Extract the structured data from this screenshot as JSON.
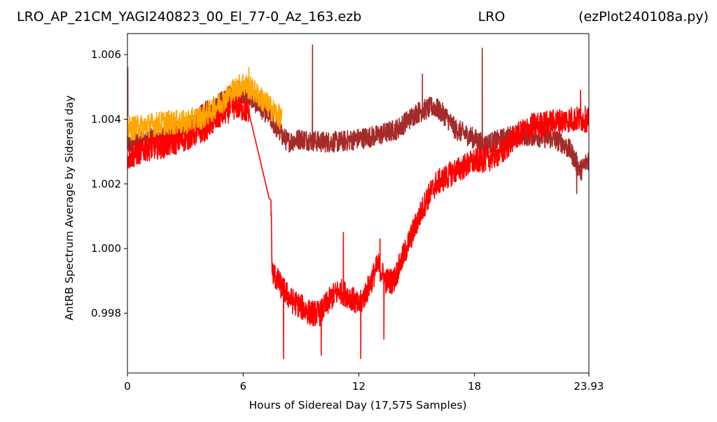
{
  "header": {
    "title_left": "LRO_AP_21CM_YAGI240823_00_El_77-0_Az_163.ezb",
    "title_center": "LRO",
    "title_right": "(ezPlot240108a.py)"
  },
  "chart_data": {
    "type": "line",
    "xlabel": "Hours of Sidereal Day  (17,575 Samples)",
    "ylabel": "AntRB Spectrum Average by Sidereal day",
    "xlim": [
      0,
      23.93
    ],
    "ylim": [
      0.99615,
      1.00665
    ],
    "x_ticks": [
      0,
      6,
      12,
      18,
      23.93
    ],
    "x_tick_labels": [
      "0",
      "6",
      "12",
      "18",
      "23.93"
    ],
    "y_ticks": [
      0.998,
      1.0,
      1.002,
      1.004,
      1.006
    ],
    "y_tick_labels": [
      "0.998",
      "1.000",
      "1.002",
      "1.004",
      "1.006"
    ],
    "colors": {
      "brown": "#a52a2a",
      "red": "#ff0000",
      "orange": "#ffa500"
    },
    "series": [
      {
        "color": "brown",
        "noise": 0.00033,
        "x": [
          0,
          1,
          2,
          3,
          4,
          5,
          5.8,
          6.5,
          7.2,
          7.9,
          8.3,
          9,
          10,
          11,
          12,
          13,
          14,
          15,
          15.9,
          16.5,
          17,
          18,
          18.5,
          19,
          20,
          21,
          22,
          22.5,
          23,
          23.5,
          23.93
        ],
        "y": [
          1.0032,
          1.0034,
          1.0035,
          1.0037,
          1.0042,
          1.0046,
          1.0049,
          1.0046,
          1.0042,
          1.0036,
          1.0033,
          1.0034,
          1.0033,
          1.0033,
          1.0034,
          1.0035,
          1.0037,
          1.0042,
          1.0044,
          1.0041,
          1.0037,
          1.0034,
          1.0032,
          1.0033,
          1.0035,
          1.0035,
          1.0034,
          1.0033,
          1.003,
          1.0024,
          1.0028
        ],
        "spikes": [
          {
            "x": 0.02,
            "y": 1.0056
          },
          {
            "x": 9.6,
            "y": 1.0063
          },
          {
            "x": 15.3,
            "y": 1.0054
          },
          {
            "x": 18.4,
            "y": 1.0062
          },
          {
            "x": 23.3,
            "y": 1.0017
          }
        ]
      },
      {
        "color": "red",
        "noise": 0.0004,
        "x": [
          0,
          1,
          2,
          3,
          4,
          5,
          5.6,
          6.1,
          6.3,
          7.35,
          7.45,
          7.5,
          8,
          8.5,
          9,
          9.5,
          10,
          10.6,
          11,
          11.6,
          12,
          12.5,
          13,
          13.4,
          13.8,
          14.4,
          15,
          15.5,
          16,
          17,
          18,
          18.8,
          19.5,
          20,
          21,
          22,
          23,
          23.93
        ],
        "y": [
          1.0028,
          1.0031,
          1.0032,
          1.0034,
          1.0037,
          1.0042,
          1.0044,
          1.0043,
          1.0042,
          1.00155,
          1.0015,
          0.9993,
          0.9988,
          0.9984,
          0.9982,
          0.998,
          0.998,
          0.9985,
          0.9987,
          0.9985,
          0.9982,
          0.9988,
          0.9995,
          0.999,
          0.999,
          0.9999,
          1.0008,
          1.0015,
          1.002,
          1.0024,
          1.0027,
          1.0028,
          1.003,
          1.0034,
          1.0038,
          1.0039,
          1.004,
          1.004
        ],
        "spikes": [
          {
            "x": 8.1,
            "y": 0.9966
          },
          {
            "x": 10.05,
            "y": 0.9967
          },
          {
            "x": 11.2,
            "y": 1.0005
          },
          {
            "x": 12.1,
            "y": 0.9966
          },
          {
            "x": 13.1,
            "y": 1.0003
          },
          {
            "x": 13.3,
            "y": 0.9972
          },
          {
            "x": 23.5,
            "y": 1.0049
          }
        ]
      },
      {
        "color": "orange",
        "noise": 0.00038,
        "x": [
          0,
          1,
          2,
          3,
          4,
          5,
          5.5,
          6.0,
          6.5,
          7.0,
          7.5,
          8.0
        ],
        "y": [
          1.0037,
          1.0038,
          1.0039,
          1.0039,
          1.0041,
          1.0046,
          1.0049,
          1.0051,
          1.0049,
          1.0046,
          1.0043,
          1.004
        ],
        "spikes": [
          {
            "x": 6.3,
            "y": 1.0056
          }
        ]
      }
    ]
  }
}
